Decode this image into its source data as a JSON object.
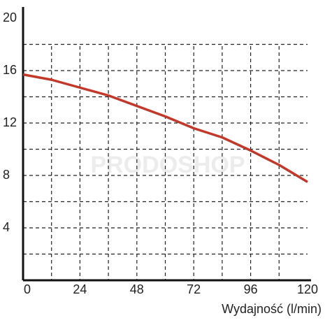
{
  "chart_data": {
    "type": "line",
    "x_label": "Wydajność (l/min)",
    "watermark": "PRODOSHOP",
    "x": [
      0,
      12,
      24,
      36,
      48,
      60,
      72,
      84,
      96,
      108,
      120
    ],
    "series": [
      {
        "color": "#c0392b",
        "values": [
          15.7,
          15.3,
          14.7,
          14.1,
          13.3,
          12.5,
          11.6,
          10.9,
          9.9,
          8.8,
          7.5
        ]
      }
    ],
    "xlim": [
      0,
      120
    ],
    "ylim": [
      0,
      20
    ],
    "xticks": [
      0,
      24,
      48,
      72,
      96,
      120
    ],
    "yticks": [
      4,
      8,
      12,
      16,
      20
    ],
    "xgrid": [
      12,
      24,
      36,
      48,
      60,
      72,
      84,
      96,
      108
    ],
    "ygrid": [
      2,
      4,
      6,
      8,
      10,
      12,
      14,
      16,
      18
    ],
    "grid": true
  }
}
